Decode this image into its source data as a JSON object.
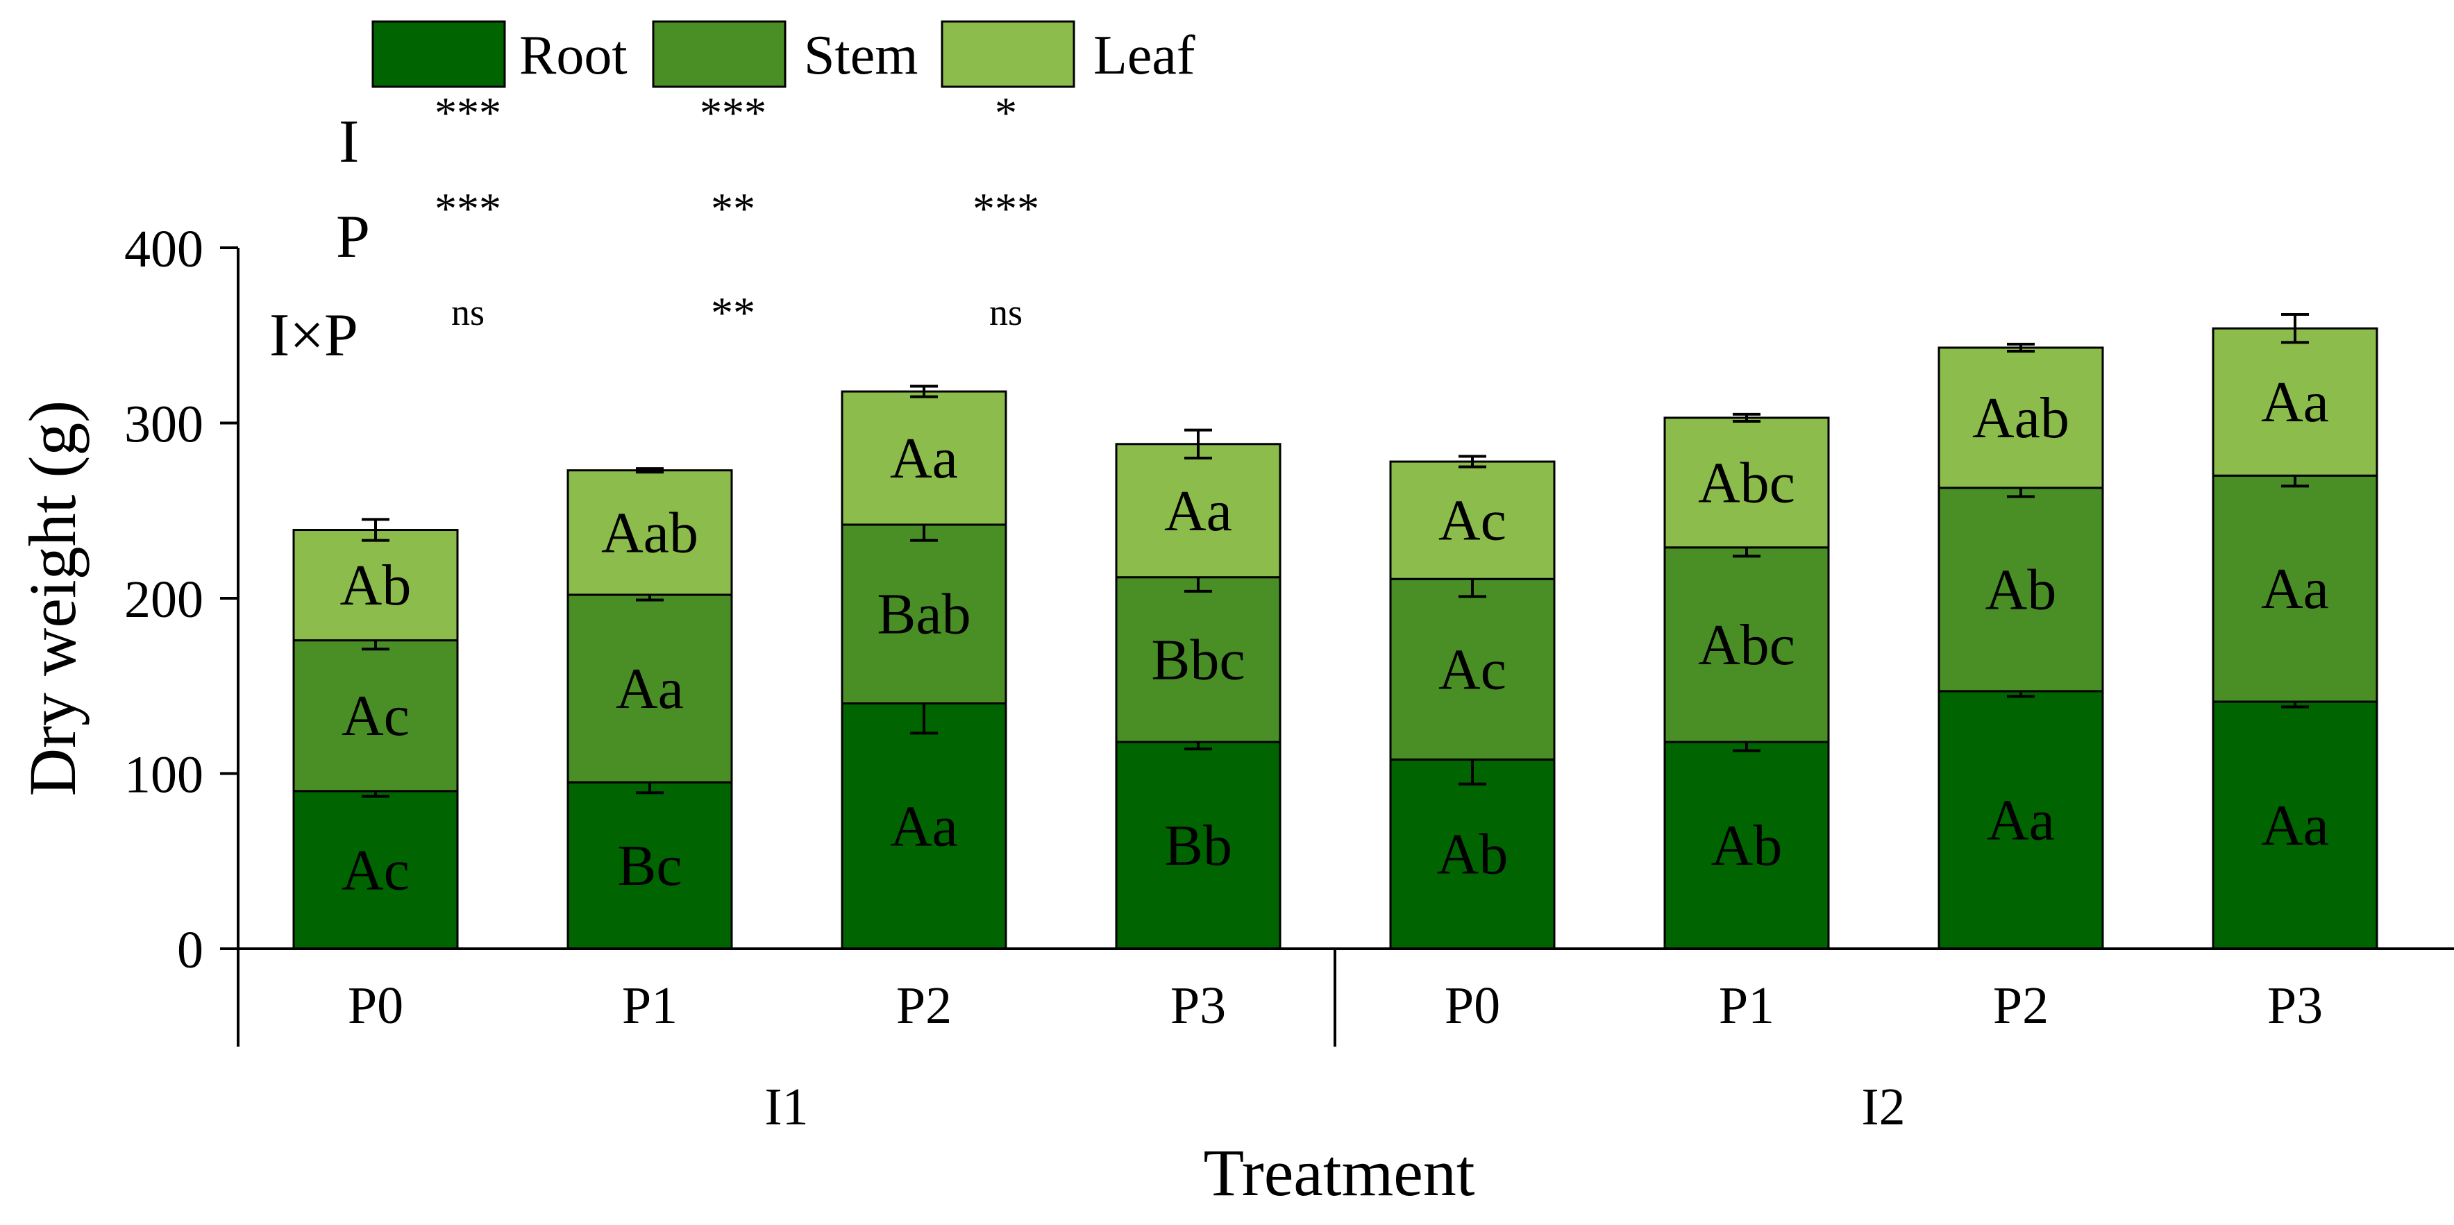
{
  "chart_data": {
    "type": "bar",
    "stacked": true,
    "xlabel": "Treatment",
    "ylabel": "Dry weight (g)",
    "ylim": [
      0,
      400
    ],
    "yticks": [
      0,
      100,
      200,
      300,
      400
    ],
    "legend_position": "top-left",
    "groups": [
      {
        "label": "I1",
        "categories": [
          "P0",
          "P1",
          "P2",
          "P3"
        ]
      },
      {
        "label": "I2",
        "categories": [
          "P0",
          "P1",
          "P2",
          "P3"
        ]
      }
    ],
    "categories": [
      "P0",
      "P1",
      "P2",
      "P3",
      "P0",
      "P1",
      "P2",
      "P3"
    ],
    "series": [
      {
        "name": "Root",
        "color": "#006400",
        "values": [
          90,
          95,
          140,
          118,
          108,
          118,
          147,
          141
        ],
        "errors": [
          3,
          6,
          17,
          4,
          14,
          5,
          3,
          3
        ],
        "labels": [
          "Ac",
          "Bc",
          "Aa",
          "Bb",
          "Ab",
          "Ab",
          "Aa",
          "Aa"
        ]
      },
      {
        "name": "Stem",
        "color": "#4a8f26",
        "values": [
          86,
          107,
          102,
          94,
          103,
          111,
          116,
          129
        ],
        "errors": [
          5,
          3,
          9,
          8,
          10,
          5,
          5,
          6
        ],
        "labels": [
          "Ac",
          "Aa",
          "Bab",
          "Bbc",
          "Ac",
          "Abc",
          "Ab",
          "Aa"
        ]
      },
      {
        "name": "Leaf",
        "color": "#8cbd4c",
        "values": [
          63,
          71,
          76,
          76,
          67,
          74,
          80,
          84
        ],
        "errors": [
          6,
          1,
          3,
          8,
          3,
          2,
          2,
          8
        ],
        "labels": [
          "Ab",
          "Aab",
          "Aa",
          "Aa",
          "Ac",
          "Abc",
          "Aab",
          "Aa"
        ]
      }
    ],
    "significance": {
      "rows": [
        "I",
        "P",
        "I×P"
      ],
      "columns": [
        {
          "series": "Root",
          "values": [
            "***",
            "***",
            "ns"
          ]
        },
        {
          "series": "Stem",
          "values": [
            "***",
            "**",
            "**"
          ]
        },
        {
          "series": "Leaf",
          "values": [
            "*",
            "***",
            "ns"
          ]
        }
      ]
    }
  }
}
